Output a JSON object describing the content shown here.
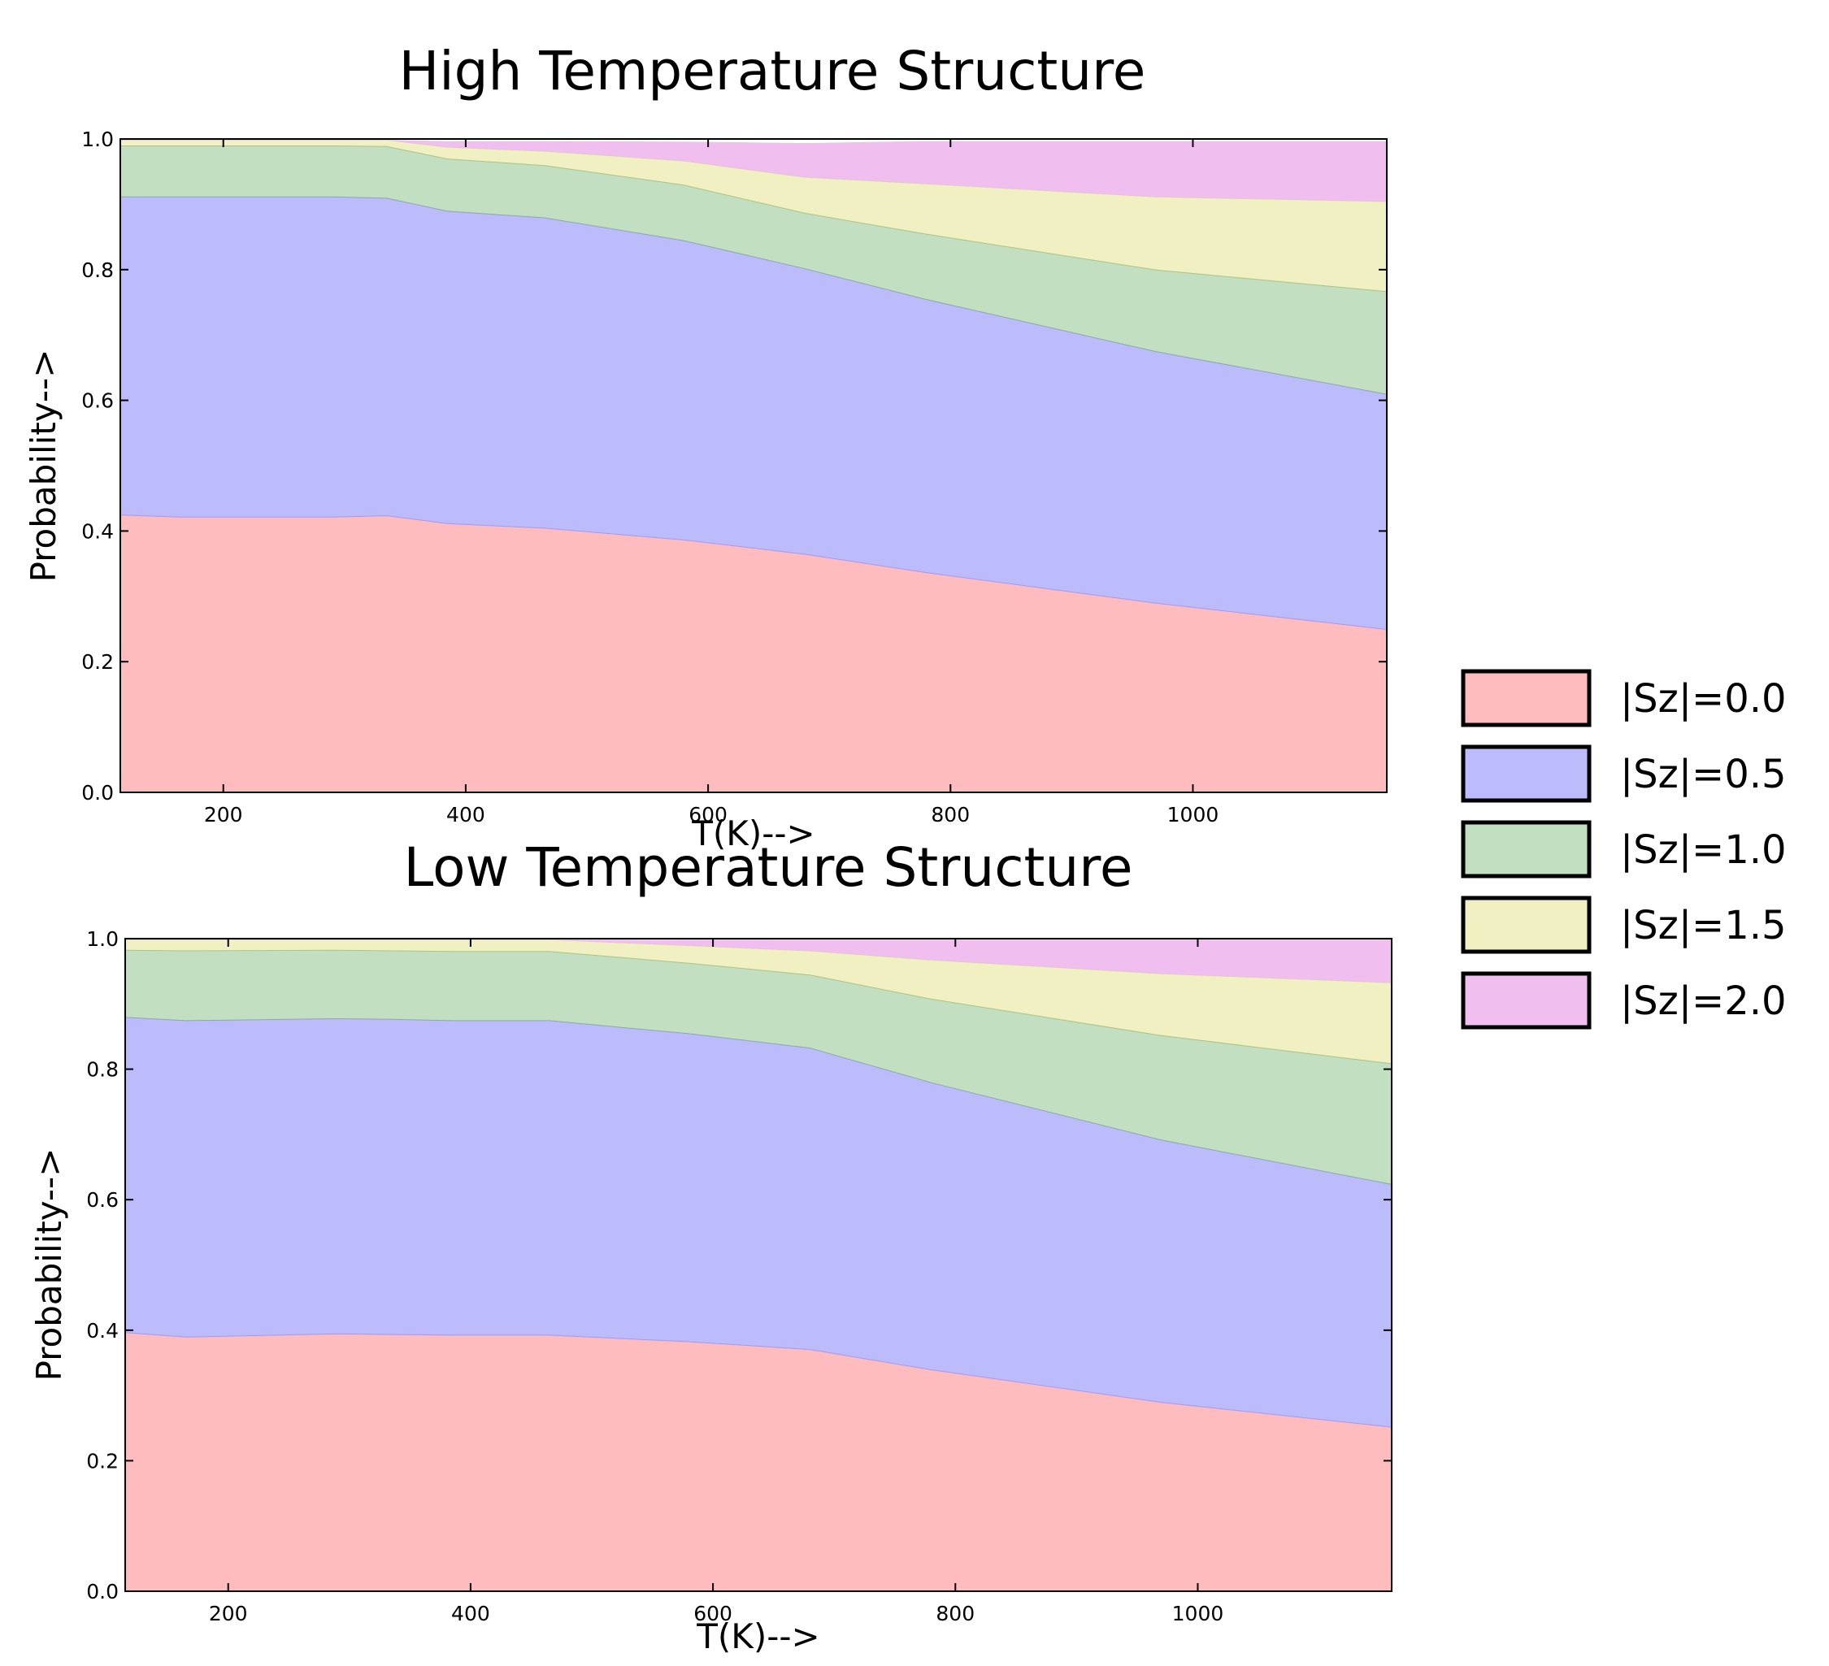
{
  "colors": {
    "|Sz|=0.0": "#ffbcbf",
    "|Sz|=0.5": "#bcbcfd",
    "|Sz|=1.0": "#c2dfc2",
    "|Sz|=1.5": "#f0f0c2",
    "|Sz|=2.0": "#f0bff0"
  },
  "edge_colors": {
    "|Sz|=0.0": "#a898e8",
    "|Sz|=0.5": "#8aa6b4",
    "|Sz|=1.0": "#a8c488",
    "|Sz|=1.5": "#e0c8c8",
    "|Sz|=2.0": "#ffffff"
  },
  "legend": {
    "entries": [
      "|Sz|=0.0",
      "|Sz|=0.5",
      "|Sz|=1.0",
      "|Sz|=1.5",
      "|Sz|=2.0"
    ]
  },
  "chart_data": [
    {
      "type": "area",
      "stacked": true,
      "title": "High Temperature Structure",
      "xlabel": "T(K)-->",
      "ylabel": "Probability-->",
      "xlim": [
        115,
        1160
      ],
      "ylim": [
        0.0,
        1.0
      ],
      "xticks": [
        200,
        400,
        600,
        800,
        1000
      ],
      "yticks": [
        "0.0",
        "0.2",
        "0.4",
        "0.6",
        "0.8",
        "1.0"
      ],
      "grid": false,
      "x": [
        115,
        165,
        290,
        335,
        385,
        465,
        580,
        680,
        780,
        970,
        1160
      ],
      "series": [
        {
          "name": "|Sz|=0.0",
          "values": [
            0.425,
            0.422,
            0.422,
            0.424,
            0.412,
            0.405,
            0.387,
            0.365,
            0.337,
            0.29,
            0.25
          ]
        },
        {
          "name": "|Sz|=0.5",
          "values": [
            0.487,
            0.49,
            0.49,
            0.486,
            0.478,
            0.475,
            0.458,
            0.437,
            0.418,
            0.385,
            0.36
          ]
        },
        {
          "name": "|Sz|=1.0",
          "values": [
            0.078,
            0.078,
            0.078,
            0.079,
            0.08,
            0.08,
            0.085,
            0.085,
            0.1,
            0.125,
            0.157
          ]
        },
        {
          "name": "|Sz|=1.5",
          "values": [
            0.009,
            0.009,
            0.009,
            0.01,
            0.018,
            0.022,
            0.037,
            0.055,
            0.077,
            0.112,
            0.138
          ]
        },
        {
          "name": "|Sz|=2.0",
          "values": [
            0.001,
            0.001,
            0.001,
            0.001,
            0.01,
            0.016,
            0.03,
            0.053,
            0.066,
            0.086,
            0.093
          ]
        }
      ]
    },
    {
      "type": "area",
      "stacked": true,
      "title": "Low Temperature Structure",
      "xlabel": "T(K)-->",
      "ylabel": "Probability-->",
      "xlim": [
        115,
        1160
      ],
      "ylim": [
        0.0,
        1.0
      ],
      "xticks": [
        200,
        400,
        600,
        800,
        1000
      ],
      "yticks": [
        "0.0",
        "0.2",
        "0.4",
        "0.6",
        "0.8",
        "1.0"
      ],
      "grid": false,
      "x": [
        115,
        165,
        290,
        335,
        385,
        465,
        580,
        680,
        780,
        970,
        1160
      ],
      "series": [
        {
          "name": "|Sz|=0.0",
          "values": [
            0.397,
            0.39,
            0.395,
            0.394,
            0.393,
            0.393,
            0.383,
            0.371,
            0.34,
            0.29,
            0.252
          ]
        },
        {
          "name": "|Sz|=0.5",
          "values": [
            0.483,
            0.485,
            0.483,
            0.483,
            0.482,
            0.482,
            0.472,
            0.462,
            0.44,
            0.402,
            0.372
          ]
        },
        {
          "name": "|Sz|=1.0",
          "values": [
            0.103,
            0.107,
            0.105,
            0.105,
            0.106,
            0.106,
            0.108,
            0.112,
            0.128,
            0.16,
            0.185
          ]
        },
        {
          "name": "|Sz|=1.5",
          "values": [
            0.016,
            0.017,
            0.016,
            0.017,
            0.018,
            0.018,
            0.027,
            0.037,
            0.06,
            0.095,
            0.124
          ]
        },
        {
          "name": "|Sz|=2.0",
          "values": [
            0.001,
            0.001,
            0.001,
            0.001,
            0.001,
            0.001,
            0.01,
            0.018,
            0.032,
            0.053,
            0.067
          ]
        }
      ]
    }
  ]
}
